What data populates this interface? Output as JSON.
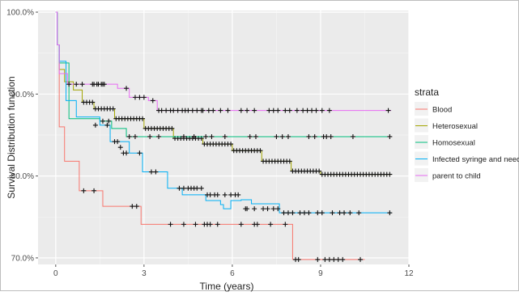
{
  "chart_data": {
    "type": "line",
    "subtype": "kaplan-meier step curves with censoring marks",
    "xlabel": "Time (years)",
    "ylabel": "Survival Distribution function",
    "xlim": [
      -0.6,
      12
    ],
    "ylim": [
      69.2,
      100.2
    ],
    "x_ticks": [
      0,
      3,
      6,
      9,
      12
    ],
    "x_tick_labels": [
      "0",
      "3",
      "6",
      "9",
      "12"
    ],
    "y_ticks": [
      70,
      80,
      90,
      100
    ],
    "y_tick_labels": [
      "70.0%",
      "80.0%",
      "90.0%",
      "100.0%"
    ],
    "grid": true,
    "panel_background": "#ebebeb",
    "legend": {
      "title": "strata",
      "position": "right"
    },
    "series": [
      {
        "name": "Blood",
        "color": "#f8766d",
        "steps": [
          [
            0,
            100
          ],
          [
            0.05,
            96
          ],
          [
            0.12,
            86
          ],
          [
            0.3,
            81.8
          ],
          [
            0.8,
            78.2
          ],
          [
            1.6,
            76.3
          ],
          [
            2.9,
            74.1
          ],
          [
            8.05,
            69.8
          ],
          [
            10.5,
            69.8
          ]
        ],
        "censored": [
          [
            0.95,
            78.2
          ],
          [
            1.3,
            78.2
          ],
          [
            2.6,
            76.3
          ],
          [
            2.75,
            76.3
          ],
          [
            3.9,
            74.1
          ],
          [
            4.35,
            74.1
          ],
          [
            4.75,
            74.1
          ],
          [
            5.05,
            74.1
          ],
          [
            5.15,
            74.1
          ],
          [
            5.25,
            74.1
          ],
          [
            5.5,
            74.1
          ],
          [
            6.3,
            74.1
          ],
          [
            6.75,
            74.1
          ],
          [
            6.85,
            74.1
          ],
          [
            7.3,
            74.1
          ],
          [
            7.8,
            74.1
          ],
          [
            8.15,
            69.8
          ],
          [
            8.25,
            69.8
          ],
          [
            8.9,
            69.8
          ],
          [
            9.15,
            69.8
          ],
          [
            9.3,
            69.8
          ],
          [
            9.45,
            69.8
          ],
          [
            9.6,
            69.8
          ],
          [
            9.75,
            69.8
          ],
          [
            10.35,
            69.8
          ]
        ]
      },
      {
        "name": "Heterosexual",
        "color": "#a3a500",
        "steps": [
          [
            0,
            100
          ],
          [
            0.05,
            96
          ],
          [
            0.12,
            93
          ],
          [
            0.3,
            91.5
          ],
          [
            0.6,
            90.5
          ],
          [
            0.9,
            89
          ],
          [
            1.3,
            88.2
          ],
          [
            2,
            87
          ],
          [
            3,
            85.8
          ],
          [
            4,
            84.6
          ],
          [
            5,
            83.9
          ],
          [
            6,
            83.1
          ],
          [
            7,
            81.8
          ],
          [
            8,
            80.6
          ],
          [
            9,
            80.2
          ],
          [
            11.4,
            80.2
          ]
        ],
        "censored_dense": {
          "from": 0.95,
          "to": 11.35,
          "step": 0.1
        }
      },
      {
        "name": "Homosexual",
        "color": "#00bf7d",
        "steps": [
          [
            0,
            100
          ],
          [
            0.05,
            96
          ],
          [
            0.12,
            93.8
          ],
          [
            0.45,
            87
          ],
          [
            1.5,
            86.7
          ],
          [
            1.9,
            85.8
          ],
          [
            2.4,
            84.8
          ],
          [
            11.4,
            84.8
          ]
        ],
        "censored": [
          [
            1.6,
            86.7
          ],
          [
            1.8,
            86.7
          ],
          [
            2.5,
            84.8
          ],
          [
            2.7,
            84.8
          ],
          [
            3.2,
            84.8
          ],
          [
            3.5,
            84.8
          ],
          [
            4.35,
            84.8
          ],
          [
            4.7,
            84.8
          ],
          [
            5.1,
            84.8
          ],
          [
            5.3,
            84.8
          ],
          [
            5.75,
            84.8
          ],
          [
            6.6,
            84.8
          ],
          [
            6.8,
            84.8
          ],
          [
            7.5,
            84.8
          ],
          [
            7.7,
            84.8
          ],
          [
            7.9,
            84.8
          ],
          [
            8.6,
            84.8
          ],
          [
            8.8,
            84.8
          ],
          [
            9.1,
            84.8
          ],
          [
            9.2,
            84.8
          ],
          [
            9.35,
            84.8
          ],
          [
            10.1,
            84.8
          ],
          [
            11.35,
            84.8
          ]
        ]
      },
      {
        "name": "Infected syringe and needles",
        "color": "#00b0f6",
        "steps": [
          [
            0,
            100
          ],
          [
            0.05,
            96
          ],
          [
            0.12,
            94
          ],
          [
            0.35,
            89.2
          ],
          [
            0.7,
            87.2
          ],
          [
            1.5,
            86.2
          ],
          [
            1.85,
            84.2
          ],
          [
            2.5,
            82.8
          ],
          [
            2.95,
            80.5
          ],
          [
            3.8,
            78.5
          ],
          [
            4.3,
            77.7
          ],
          [
            5.1,
            77
          ],
          [
            5.6,
            76.5
          ],
          [
            5.7,
            76
          ],
          [
            5.95,
            77
          ],
          [
            6.3,
            77.1
          ],
          [
            6.65,
            76.6
          ],
          [
            7.6,
            75.5
          ],
          [
            11.4,
            75.5
          ]
        ],
        "censored": [
          [
            1.35,
            86.2
          ],
          [
            1.75,
            86.2
          ],
          [
            2.0,
            84.2
          ],
          [
            2.1,
            84.2
          ],
          [
            2.2,
            83.5
          ],
          [
            2.3,
            82.8
          ],
          [
            2.4,
            82.8
          ],
          [
            2.85,
            82.8
          ],
          [
            3.25,
            80.5
          ],
          [
            3.4,
            80.5
          ],
          [
            4.2,
            78.5
          ],
          [
            4.35,
            78.5
          ],
          [
            4.5,
            78.5
          ],
          [
            4.6,
            78.5
          ],
          [
            4.7,
            78.5
          ],
          [
            4.8,
            78.5
          ],
          [
            4.95,
            78.5
          ],
          [
            5.15,
            77.7
          ],
          [
            5.25,
            77.7
          ],
          [
            5.4,
            77.7
          ],
          [
            5.5,
            77.7
          ],
          [
            5.75,
            77.7
          ],
          [
            5.95,
            77.7
          ],
          [
            6.1,
            77.7
          ],
          [
            6.2,
            77.7
          ],
          [
            6.45,
            76
          ],
          [
            6.5,
            76
          ],
          [
            6.75,
            76
          ],
          [
            7.05,
            76
          ],
          [
            7.2,
            76
          ],
          [
            7.4,
            76
          ],
          [
            7.55,
            76
          ],
          [
            7.75,
            75.5
          ],
          [
            7.9,
            75.5
          ],
          [
            8.05,
            75.5
          ],
          [
            8.3,
            75.5
          ],
          [
            8.45,
            75.5
          ],
          [
            8.6,
            75.5
          ],
          [
            8.9,
            75.5
          ],
          [
            9.05,
            75.5
          ],
          [
            9.4,
            75.5
          ],
          [
            9.65,
            75.5
          ],
          [
            9.8,
            75.5
          ],
          [
            10.0,
            75.5
          ],
          [
            10.3,
            75.5
          ],
          [
            11.35,
            75.5
          ]
        ]
      },
      {
        "name": "parent to child",
        "color": "#e76bf3",
        "steps": [
          [
            0,
            100
          ],
          [
            0.05,
            96
          ],
          [
            0.12,
            92.5
          ],
          [
            0.4,
            91.2
          ],
          [
            2.1,
            90.7
          ],
          [
            2.5,
            89.6
          ],
          [
            3.15,
            89.2
          ],
          [
            3.45,
            88
          ],
          [
            11.4,
            88
          ]
        ],
        "censored": [
          [
            0.45,
            91.2
          ],
          [
            0.7,
            91.2
          ],
          [
            0.9,
            91.2
          ],
          [
            1.25,
            91.2
          ],
          [
            1.3,
            91.2
          ],
          [
            1.4,
            91.2
          ],
          [
            1.45,
            91.2
          ],
          [
            1.55,
            91.2
          ],
          [
            1.6,
            91.2
          ],
          [
            1.65,
            91.2
          ],
          [
            2.4,
            90.7
          ],
          [
            2.7,
            89.6
          ],
          [
            2.85,
            89.6
          ],
          [
            3.0,
            89.6
          ],
          [
            3.3,
            89.2
          ],
          [
            3.5,
            88
          ],
          [
            3.6,
            88
          ],
          [
            3.75,
            88
          ],
          [
            3.9,
            88
          ],
          [
            4.0,
            88
          ],
          [
            4.15,
            88
          ],
          [
            4.3,
            88
          ],
          [
            4.4,
            88
          ],
          [
            4.5,
            88
          ],
          [
            4.65,
            88
          ],
          [
            4.8,
            88
          ],
          [
            4.95,
            88
          ],
          [
            5.0,
            88
          ],
          [
            5.2,
            88
          ],
          [
            5.35,
            88
          ],
          [
            5.6,
            88
          ],
          [
            5.85,
            88
          ],
          [
            6.3,
            88
          ],
          [
            6.5,
            88
          ],
          [
            6.75,
            88
          ],
          [
            7.25,
            88
          ],
          [
            7.4,
            88
          ],
          [
            7.55,
            88
          ],
          [
            7.8,
            88
          ],
          [
            7.95,
            88
          ],
          [
            8.2,
            88
          ],
          [
            8.4,
            88
          ],
          [
            8.55,
            88
          ],
          [
            8.7,
            88
          ],
          [
            8.85,
            88
          ],
          [
            9.05,
            88
          ],
          [
            9.3,
            88
          ],
          [
            11.3,
            88
          ]
        ]
      }
    ]
  }
}
